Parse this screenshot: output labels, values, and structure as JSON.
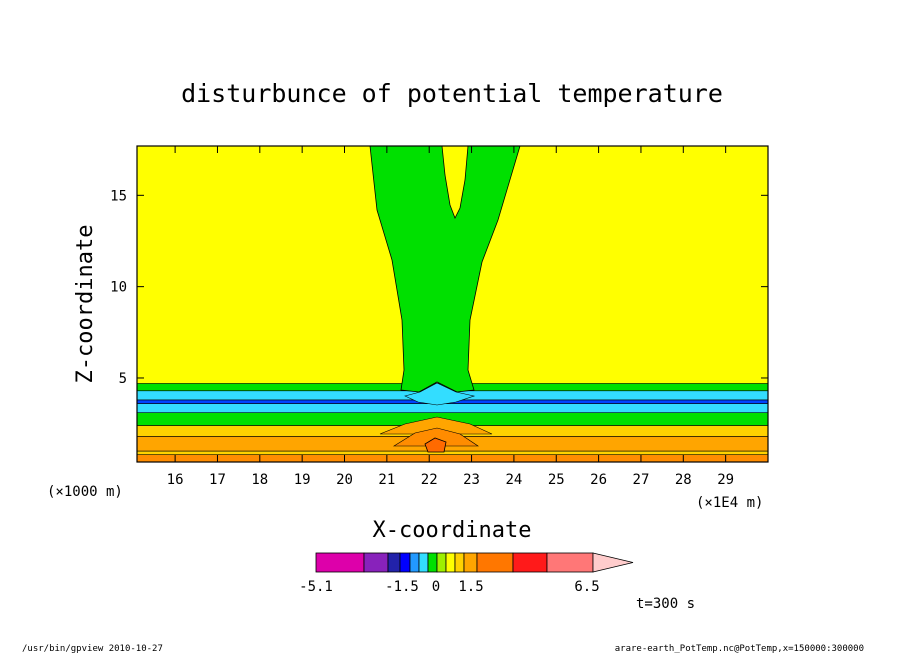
{
  "chart_data": {
    "type": "contour",
    "title": "disturbunce of potential temperature",
    "xlabel": "X-coordinate",
    "ylabel": "Z-coordinate",
    "x_unit_label": "(×1E4 m)",
    "y_unit_label": "(×1000 m)",
    "xlim": [
      15.1,
      30
    ],
    "ylim": [
      0.4,
      17.7
    ],
    "x_ticks": [
      16,
      17,
      18,
      19,
      20,
      21,
      22,
      23,
      24,
      25,
      26,
      27,
      28,
      29
    ],
    "x_tick_labels": [
      "16",
      "17",
      "18",
      "19",
      "20",
      "21",
      "22",
      "23",
      "24",
      "25",
      "26",
      "27",
      "28",
      "29"
    ],
    "y_ticks": [
      5,
      10,
      15
    ],
    "y_tick_labels": [
      "5",
      "10",
      "15"
    ],
    "background_color": "#ffff00",
    "layers": [
      {
        "z_min": 0.4,
        "z_max": 0.8,
        "color": "#ff8c00"
      },
      {
        "z_min": 0.8,
        "z_max": 1.0,
        "color": "#ffd200"
      },
      {
        "z_min": 1.0,
        "z_max": 1.8,
        "color": "#ffa500"
      },
      {
        "z_min": 1.8,
        "z_max": 2.4,
        "color": "#ffd200"
      },
      {
        "z_min": 2.4,
        "z_max": 3.1,
        "color": "#00e000"
      },
      {
        "z_min": 3.1,
        "z_max": 3.6,
        "color": "#33ddff"
      },
      {
        "z_min": 3.6,
        "z_max": 3.8,
        "color": "#0044ff"
      },
      {
        "z_min": 3.8,
        "z_max": 4.3,
        "color": "#33ddff"
      },
      {
        "z_min": 4.3,
        "z_max": 4.7,
        "color": "#00e000"
      }
    ],
    "colorbar": {
      "colors": [
        "#dd00aa",
        "#8822bb",
        "#2222aa",
        "#0000ff",
        "#2299ff",
        "#33ddff",
        "#00e000",
        "#9ef000",
        "#ffff00",
        "#ffd200",
        "#ffa500",
        "#ff7700",
        "#ff1a1a",
        "#ff7777",
        "#ffcccc"
      ],
      "labels": [
        "-5.1",
        "-1.5",
        "0",
        "1.5",
        "6.5"
      ],
      "label_values": [
        -5.1,
        -1.5,
        0,
        1.5,
        6.5
      ]
    },
    "annotation": "t=300 s"
  },
  "footer": {
    "left": "/usr/bin/gpview  2010-10-27",
    "right": "arare-earth_PotTemp.nc@PotTemp,x=150000:300000"
  }
}
